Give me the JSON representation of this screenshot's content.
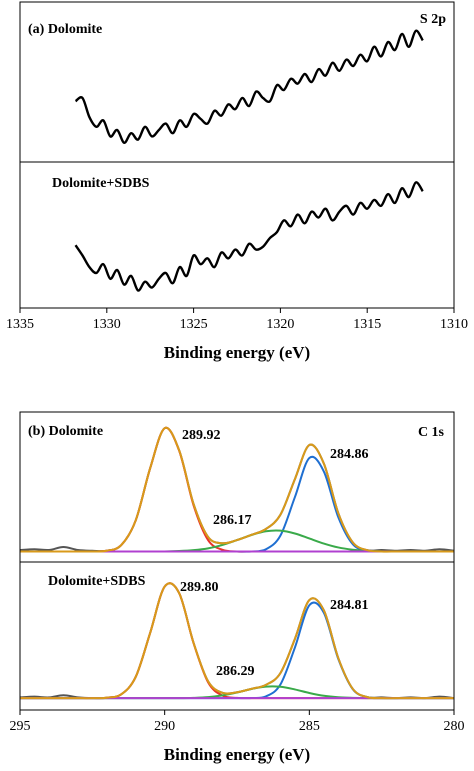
{
  "chart_data": [
    {
      "type": "line",
      "corner_label": "S 2p",
      "xlabel": "Binding energy (eV)",
      "xlim": [
        1335,
        1310
      ],
      "xticks": [
        1335,
        1330,
        1325,
        1320,
        1315,
        1310
      ],
      "x": [
        1331.8,
        1331.4,
        1331.0,
        1330.6,
        1330.2,
        1329.8,
        1329.4,
        1329.0,
        1328.6,
        1328.2,
        1327.8,
        1327.4,
        1327.0,
        1326.6,
        1326.2,
        1325.8,
        1325.4,
        1325.0,
        1324.6,
        1324.2,
        1323.8,
        1323.4,
        1323.0,
        1322.6,
        1322.2,
        1321.8,
        1321.4,
        1321.0,
        1320.6,
        1320.2,
        1319.8,
        1319.4,
        1319.0,
        1318.6,
        1318.2,
        1317.8,
        1317.4,
        1317.0,
        1316.6,
        1316.2,
        1315.8,
        1315.4,
        1315.0,
        1314.6,
        1314.2,
        1313.8,
        1313.4,
        1313.0,
        1312.6,
        1312.2,
        1311.8
      ],
      "panels": [
        {
          "label": "(a)  Dolomite",
          "ylim": [
            0,
            100
          ],
          "annotations": [],
          "series": [
            {
              "color": "#000000",
              "values": [
                38,
                40,
                28,
                22,
                26,
                16,
                20,
                12,
                18,
                14,
                22,
                16,
                20,
                24,
                18,
                26,
                22,
                30,
                27,
                24,
                32,
                29,
                36,
                33,
                40,
                35,
                44,
                40,
                38,
                48,
                45,
                52,
                49,
                55,
                50,
                58,
                54,
                62,
                57,
                64,
                60,
                67,
                63,
                72,
                66,
                75,
                70,
                80,
                72,
                82,
                76
              ]
            }
          ]
        },
        {
          "label": "Dolomite+SDBS",
          "ylim": [
            0,
            100
          ],
          "annotations": [],
          "series": [
            {
              "color": "#000000",
              "values": [
                43,
                36,
                28,
                24,
                30,
                20,
                26,
                16,
                22,
                12,
                18,
                14,
                20,
                24,
                17,
                28,
                22,
                36,
                30,
                34,
                28,
                38,
                34,
                40,
                36,
                44,
                40,
                42,
                48,
                52,
                60,
                56,
                64,
                58,
                66,
                62,
                68,
                60,
                66,
                70,
                64,
                72,
                68,
                74,
                70,
                78,
                72,
                82,
                76,
                86,
                80
              ]
            }
          ]
        }
      ]
    },
    {
      "type": "line",
      "corner_label": "C 1s",
      "xlabel": "Binding energy (eV)",
      "xlim": [
        295,
        280
      ],
      "xticks": [
        295,
        290,
        285,
        280
      ],
      "x": [
        295,
        294.5,
        294,
        293.5,
        293,
        292.5,
        292,
        291.5,
        291,
        290.5,
        290,
        289.5,
        289,
        288.5,
        288,
        287.5,
        287,
        286.5,
        286,
        285.5,
        285,
        284.5,
        284,
        283.5,
        283,
        282.5,
        282,
        281.5,
        281,
        280.5,
        280
      ],
      "panels": [
        {
          "label": "(b) Dolomite",
          "ylim": [
            0,
            100
          ],
          "annotations": [
            "289.92",
            "286.17",
            "284.86"
          ],
          "series": [
            {
              "color": "#555555",
              "values": [
                8,
                8.5,
                8,
                10,
                8,
                7.5,
                7.5,
                11.3,
                27.8,
                62.6,
                89.2,
                74.5,
                38.6,
                16.7,
                12.5,
                14.6,
                18.1,
                22,
                31.5,
                55.2,
                78,
                65.7,
                32.6,
                13.1,
                7.9,
                8,
                7.5,
                8,
                7.5,
                8.5,
                7.5
              ]
            },
            {
              "color": "#e8342a",
              "values": [
                7,
                7,
                7,
                7,
                7,
                7,
                7.5,
                11.3,
                27.8,
                62.6,
                89.2,
                74.2,
                37.7,
                14.6,
                8.1,
                7,
                7,
                7,
                7,
                7,
                7,
                7,
                7,
                7,
                7,
                7,
                7,
                7,
                7,
                7,
                7
              ]
            },
            {
              "color": "#1f6fd1",
              "values": [
                7,
                7,
                7,
                7,
                7,
                7,
                7,
                7,
                7,
                7,
                7,
                7,
                7,
                7,
                7,
                7,
                7,
                8.5,
                17.6,
                43.2,
                69.3,
                60.4,
                29.9,
                11.9,
                7.5,
                7,
                7,
                7,
                7,
                7,
                7
              ]
            },
            {
              "color": "#3aaa4a",
              "values": [
                7,
                7,
                7,
                7,
                7,
                7,
                7,
                7,
                7,
                7,
                7,
                7.3,
                7.9,
                9.1,
                11.4,
                14.6,
                18,
                20.5,
                20.9,
                19,
                15.7,
                12.3,
                9.7,
                8.2,
                7.4,
                7,
                7,
                7,
                7,
                7,
                7
              ]
            },
            {
              "color": "#b040d0",
              "values": [
                7,
                7,
                7,
                7,
                7,
                7,
                7,
                7,
                7,
                7,
                7,
                7,
                7,
                7,
                7,
                7,
                7,
                7,
                7,
                7,
                7,
                7,
                7,
                7,
                7,
                7,
                7,
                7,
                7,
                7,
                7
              ]
            },
            {
              "color": "#d99a1a",
              "values": [
                7,
                7,
                7,
                7,
                7,
                7,
                7.5,
                11.3,
                27.8,
                62.6,
                89.2,
                74.5,
                38.6,
                16.7,
                12.5,
                14.6,
                18.1,
                22,
                31.5,
                55.2,
                78,
                65.7,
                32.6,
                13.1,
                7.9,
                7,
                7,
                7,
                7,
                7,
                7
              ]
            }
          ]
        },
        {
          "label": "Dolomite+SDBS",
          "ylim": [
            0,
            100
          ],
          "annotations": [
            "289.80",
            "286.29",
            "284.81"
          ],
          "series": [
            {
              "color": "#555555",
              "values": [
                8.5,
                9,
                8.5,
                10,
                8.5,
                8,
                8.3,
                10.6,
                22.4,
                52.2,
                83.4,
                79,
                45.3,
                19.4,
                11.6,
                12,
                14.3,
                17,
                24.9,
                48,
                74.3,
                67.4,
                35.1,
                14.3,
                8.7,
                8.5,
                8,
                8.5,
                8,
                9,
                8
              ]
            },
            {
              "color": "#e8342a",
              "values": [
                8,
                8,
                8,
                8,
                8,
                8,
                8.3,
                10.6,
                22.4,
                52.2,
                83.4,
                79,
                45.1,
                18.7,
                9.7,
                8.2,
                8,
                8,
                8,
                8,
                8,
                8,
                8,
                8,
                8,
                8,
                8,
                8,
                8,
                8,
                8
              ]
            },
            {
              "color": "#1f6fd1",
              "values": [
                8,
                8,
                8,
                8,
                8,
                8,
                8,
                8,
                8,
                8,
                8,
                8,
                8,
                8,
                8,
                8,
                8.1,
                9.2,
                17.2,
                42.1,
                70.8,
                65.8,
                34.5,
                14.1,
                8.7,
                8,
                8,
                8,
                8,
                8,
                8
              ]
            },
            {
              "color": "#3aaa4a",
              "values": [
                8,
                8,
                8,
                8,
                8,
                8,
                8,
                8,
                8,
                8,
                8,
                8,
                8.2,
                8.7,
                9.9,
                11.8,
                14.2,
                15.8,
                15.7,
                13.9,
                11.5,
                9.6,
                8.6,
                8.2,
                8,
                8,
                8,
                8,
                8,
                8,
                8
              ]
            },
            {
              "color": "#b040d0",
              "values": [
                8,
                8,
                8,
                8,
                8,
                8,
                8,
                8,
                8,
                8,
                8,
                8,
                8,
                8,
                8,
                8,
                8,
                8,
                8,
                8,
                8,
                8,
                8,
                8,
                8,
                8,
                8,
                8,
                8,
                8,
                8
              ]
            },
            {
              "color": "#d99a1a",
              "values": [
                8,
                8,
                8,
                8,
                8,
                8,
                8.3,
                10.6,
                22.4,
                52.2,
                83.4,
                79,
                45.3,
                19.4,
                11.6,
                12,
                14.3,
                17,
                24.9,
                48,
                74.3,
                67.4,
                35.1,
                14.3,
                8.7,
                8,
                8,
                8,
                8,
                8,
                8
              ]
            }
          ]
        }
      ]
    }
  ]
}
